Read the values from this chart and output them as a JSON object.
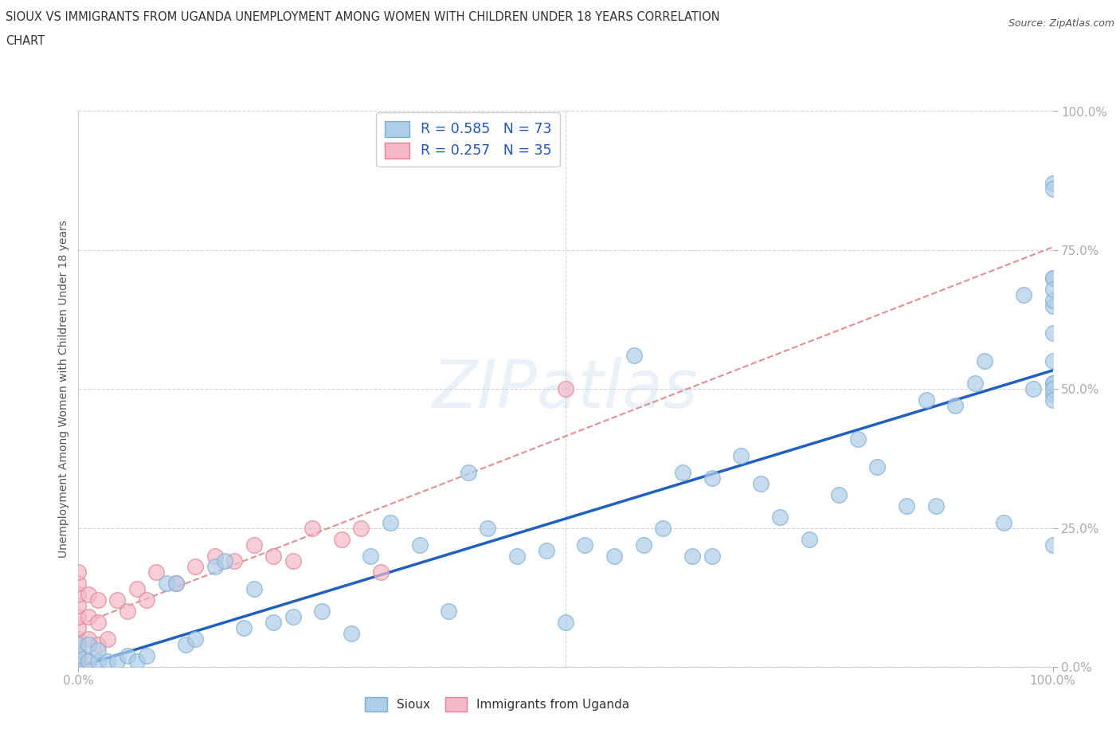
{
  "title_line1": "SIOUX VS IMMIGRANTS FROM UGANDA UNEMPLOYMENT AMONG WOMEN WITH CHILDREN UNDER 18 YEARS CORRELATION",
  "title_line2": "CHART",
  "source_text": "Source: ZipAtlas.com",
  "ylabel": "Unemployment Among Women with Children Under 18 years",
  "xlim": [
    0.0,
    1.0
  ],
  "ylim": [
    0.0,
    1.0
  ],
  "ytick_labels": [
    "0.0%",
    "25.0%",
    "50.0%",
    "75.0%",
    "100.0%"
  ],
  "ytick_positions": [
    0.0,
    0.25,
    0.5,
    0.75,
    1.0
  ],
  "grid_color": "#d0d0d0",
  "background_color": "#ffffff",
  "sioux_color": "#aecde8",
  "uganda_color": "#f4b8c8",
  "sioux_edge_color": "#7aaed4",
  "uganda_edge_color": "#e08090",
  "trend_sioux_color": "#2060c0",
  "trend_uganda_color": "#e09090",
  "legend_label_sioux": "Sioux",
  "legend_label_uganda": "Immigrants from Uganda",
  "sioux_x": [
    0.0,
    0.0,
    0.0,
    0.01,
    0.01,
    0.02,
    0.02,
    0.03,
    0.04,
    0.05,
    0.06,
    0.07,
    0.09,
    0.1,
    0.11,
    0.12,
    0.14,
    0.15,
    0.17,
    0.18,
    0.2,
    0.22,
    0.25,
    0.28,
    0.3,
    0.32,
    0.35,
    0.38,
    0.4,
    0.42,
    0.45,
    0.48,
    0.5,
    0.52,
    0.55,
    0.57,
    0.58,
    0.6,
    0.62,
    0.63,
    0.65,
    0.65,
    0.68,
    0.7,
    0.72,
    0.75,
    0.78,
    0.8,
    0.82,
    0.85,
    0.87,
    0.88,
    0.9,
    0.92,
    0.93,
    0.95,
    0.97,
    0.98,
    1.0,
    1.0,
    1.0,
    1.0,
    1.0,
    1.0,
    1.0,
    1.0,
    1.0,
    1.0,
    1.0,
    1.0,
    1.0,
    1.0,
    1.0
  ],
  "sioux_y": [
    0.01,
    0.02,
    0.04,
    0.01,
    0.04,
    0.01,
    0.03,
    0.01,
    0.01,
    0.02,
    0.01,
    0.02,
    0.15,
    0.15,
    0.04,
    0.05,
    0.18,
    0.19,
    0.07,
    0.14,
    0.08,
    0.09,
    0.1,
    0.06,
    0.2,
    0.26,
    0.22,
    0.1,
    0.35,
    0.25,
    0.2,
    0.21,
    0.08,
    0.22,
    0.2,
    0.56,
    0.22,
    0.25,
    0.35,
    0.2,
    0.2,
    0.34,
    0.38,
    0.33,
    0.27,
    0.23,
    0.31,
    0.41,
    0.36,
    0.29,
    0.48,
    0.29,
    0.47,
    0.51,
    0.55,
    0.26,
    0.67,
    0.5,
    0.49,
    0.51,
    0.55,
    0.6,
    0.65,
    0.7,
    0.87,
    0.51,
    0.7,
    0.86,
    0.5,
    0.66,
    0.68,
    0.48,
    0.22
  ],
  "uganda_x": [
    0.0,
    0.0,
    0.0,
    0.0,
    0.0,
    0.0,
    0.0,
    0.0,
    0.0,
    0.0,
    0.01,
    0.01,
    0.01,
    0.01,
    0.02,
    0.02,
    0.02,
    0.03,
    0.04,
    0.05,
    0.06,
    0.07,
    0.08,
    0.1,
    0.12,
    0.14,
    0.16,
    0.18,
    0.2,
    0.22,
    0.24,
    0.27,
    0.29,
    0.31,
    0.5
  ],
  "uganda_y": [
    0.01,
    0.02,
    0.03,
    0.05,
    0.07,
    0.09,
    0.11,
    0.13,
    0.15,
    0.17,
    0.01,
    0.05,
    0.09,
    0.13,
    0.04,
    0.08,
    0.12,
    0.05,
    0.12,
    0.1,
    0.14,
    0.12,
    0.17,
    0.15,
    0.18,
    0.2,
    0.19,
    0.22,
    0.2,
    0.19,
    0.25,
    0.23,
    0.25,
    0.17,
    0.5
  ]
}
